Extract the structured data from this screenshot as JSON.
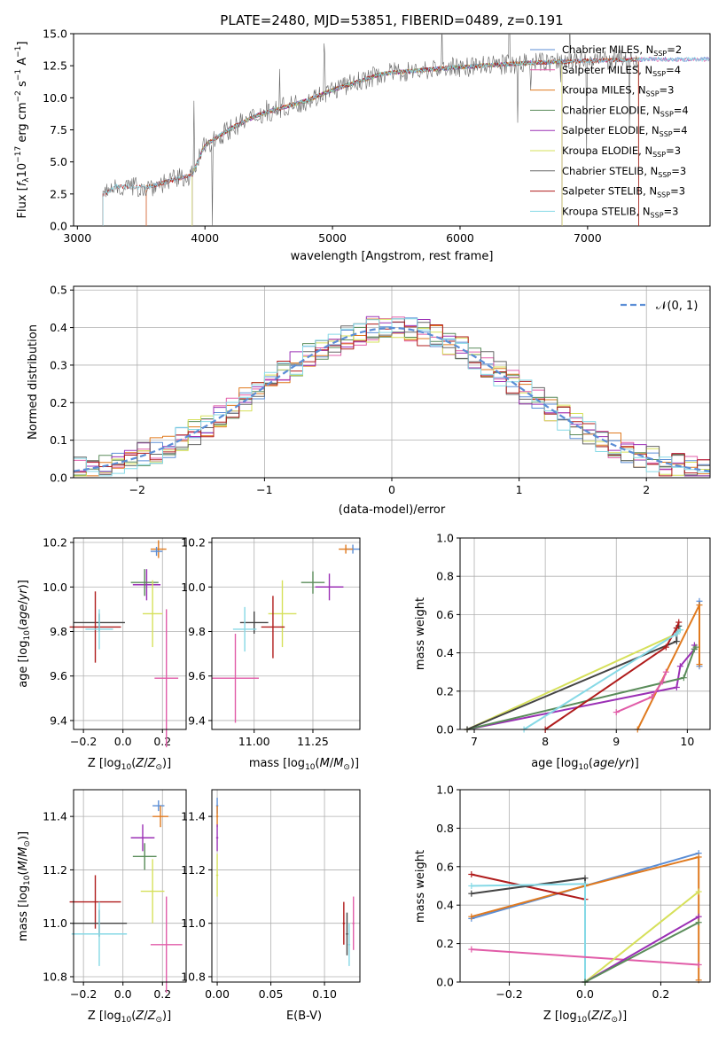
{
  "chart_data": [
    {
      "type": "line",
      "title": "PLATE=2480, MJD=53851, FIBERID=0489, z=0.191",
      "xlabel": "wavelength [Angstrom, rest frame]",
      "ylabel": "Flux [f_λ 10^-17 erg cm^-2 s^-1 A^-1]",
      "xlim": [
        2970,
        7960
      ],
      "ylim": [
        0,
        15
      ],
      "xticks": [
        "3000",
        "4000",
        "5000",
        "6000",
        "7000"
      ],
      "yticks": [
        "0.0",
        "2.5",
        "5.0",
        "7.5",
        "10.0",
        "12.5",
        "15.0"
      ],
      "legend_position": "top-right",
      "series": [
        {
          "name": "Chabrier MILES, N_SSP=2",
          "color": "#5b8ed6",
          "xrange": [
            3540,
            7960
          ]
        },
        {
          "name": "Salpeter MILES, N_SSP=4",
          "color": "#e15ca8",
          "xrange": [
            3540,
            7960
          ]
        },
        {
          "name": "Kroupa MILES, N_SSP=3",
          "color": "#e07a1f",
          "xrange": [
            3540,
            7400
          ]
        },
        {
          "name": "Chabrier ELODIE, N_SSP=4",
          "color": "#5a8c5a",
          "xrange": [
            3900,
            6800
          ]
        },
        {
          "name": "Salpeter ELODIE, N_SSP=4",
          "color": "#9b30b5",
          "xrange": [
            3900,
            6800
          ]
        },
        {
          "name": "Kroupa ELODIE, N_SSP=3",
          "color": "#d6e05a",
          "xrange": [
            3900,
            6800
          ]
        },
        {
          "name": "Chabrier STELIB, N_SSP=3",
          "color": "#666666",
          "xrange": [
            3200,
            7400
          ]
        },
        {
          "name": "Salpeter STELIB, N_SSP=3",
          "color": "#b01c1c",
          "xrange": [
            3200,
            7400
          ]
        },
        {
          "name": "Kroupa STELIB, N_SSP=3",
          "color": "#86d9e6",
          "xrange": [
            3200,
            7960
          ]
        }
      ],
      "continuum": {
        "x": [
          3200,
          3300,
          3540,
          3900,
          4000,
          4200,
          4400,
          4800,
          5000,
          5400,
          6000,
          6500,
          7000,
          7500,
          7960
        ],
        "y": [
          2.4,
          3.1,
          3.0,
          4.0,
          6.3,
          7.6,
          8.6,
          9.8,
          10.6,
          11.9,
          12.4,
          12.7,
          12.9,
          13.0,
          13.0
        ]
      }
    },
    {
      "type": "histogram",
      "xlabel": "(data-model)/error",
      "ylabel": "Normed distribution",
      "xlim": [
        -2.5,
        2.5
      ],
      "ylim": [
        0,
        0.51
      ],
      "xticks": [
        "−2",
        "−1",
        "0",
        "1",
        "2"
      ],
      "yticks": [
        "0.0",
        "0.1",
        "0.2",
        "0.3",
        "0.4",
        "0.5"
      ],
      "legend": {
        "label": "𝒩(0, 1)",
        "color": "#5b8ed6",
        "position": "top-right"
      },
      "bin_width": 0.1
    },
    {
      "type": "scatter",
      "xlabel": "Z [log10(Z/Z☉)]",
      "ylabel": "age  [log10(age/yr)]",
      "xlim": [
        -0.25,
        0.32
      ],
      "ylim": [
        9.36,
        10.22
      ],
      "xticks": [
        "−0.2",
        "0.0",
        "0.2"
      ],
      "yticks": [
        "9.4",
        "9.6",
        "9.8",
        "10.0",
        "10.2"
      ],
      "points": [
        {
          "x": 0.18,
          "y": 10.17,
          "xe": 0.04,
          "ye": 0.04,
          "c": "#e07a1f"
        },
        {
          "x": 0.12,
          "y": 10.01,
          "xe": 0.07,
          "ye": 0.07,
          "c": "#9b30b5"
        },
        {
          "x": 0.11,
          "y": 10.02,
          "xe": 0.07,
          "ye": 0.06,
          "c": "#5a8c5a"
        },
        {
          "x": 0.15,
          "y": 9.88,
          "xe": 0.05,
          "ye": 0.15,
          "c": "#d6e05a"
        },
        {
          "x": -0.12,
          "y": 9.84,
          "xe": 0.13,
          "ye": 0.04,
          "c": "#444444"
        },
        {
          "x": -0.14,
          "y": 9.82,
          "xe": 0.13,
          "ye": 0.16,
          "c": "#b01c1c"
        },
        {
          "x": -0.12,
          "y": 9.81,
          "xe": 0.07,
          "ye": 0.09,
          "c": "#86d9e6"
        },
        {
          "x": 0.22,
          "y": 9.59,
          "xe": 0.06,
          "ye": 0.31,
          "c": "#e15ca8"
        },
        {
          "x": 0.17,
          "y": 10.16,
          "xe": 0.03,
          "ye": 0.02,
          "c": "#5b8ed6"
        }
      ]
    },
    {
      "type": "scatter",
      "xlabel": "mass [log10(M/M☉)]",
      "ylabel": "",
      "xlim": [
        10.82,
        11.45
      ],
      "ylim": [
        9.36,
        10.22
      ],
      "xticks": [
        "11.00",
        "11.25"
      ],
      "yticks": [
        "9.4",
        "9.6",
        "9.8",
        "10.0",
        "10.2"
      ],
      "points": [
        {
          "x": 11.42,
          "y": 10.17,
          "xe": 0.03,
          "ye": 0.02,
          "c": "#5b8ed6"
        },
        {
          "x": 11.39,
          "y": 10.17,
          "xe": 0.03,
          "ye": 0.02,
          "c": "#e07a1f"
        },
        {
          "x": 11.32,
          "y": 10.0,
          "xe": 0.06,
          "ye": 0.06,
          "c": "#9b30b5"
        },
        {
          "x": 11.25,
          "y": 10.02,
          "xe": 0.05,
          "ye": 0.05,
          "c": "#5a8c5a"
        },
        {
          "x": 11.12,
          "y": 9.88,
          "xe": 0.06,
          "ye": 0.15,
          "c": "#d6e05a"
        },
        {
          "x": 11.0,
          "y": 9.84,
          "xe": 0.06,
          "ye": 0.05,
          "c": "#444444"
        },
        {
          "x": 11.08,
          "y": 9.82,
          "xe": 0.05,
          "ye": 0.14,
          "c": "#b01c1c"
        },
        {
          "x": 10.96,
          "y": 9.81,
          "xe": 0.05,
          "ye": 0.1,
          "c": "#86d9e6"
        },
        {
          "x": 10.92,
          "y": 9.59,
          "xe": 0.1,
          "ye": 0.2,
          "c": "#e15ca8"
        }
      ]
    },
    {
      "type": "line",
      "xlabel": "age  [log10(age/yr)]",
      "ylabel": "mass weight",
      "xlim": [
        6.8,
        10.32
      ],
      "ylim": [
        0,
        1
      ],
      "xticks": [
        "7",
        "8",
        "9",
        "10"
      ],
      "yticks": [
        "0.0",
        "0.2",
        "0.4",
        "0.6",
        "0.8",
        "1.0"
      ],
      "series": [
        {
          "c": "#5b8ed6",
          "x": [
            10.17,
            10.17
          ],
          "y": [
            0.67,
            0.33
          ]
        },
        {
          "c": "#e07a1f",
          "x": [
            9.3,
            10.17,
            10.17
          ],
          "y": [
            0.0,
            0.65,
            0.34
          ]
        },
        {
          "c": "#9b30b5",
          "x": [
            6.9,
            9.85,
            9.9,
            10.1,
            10.1
          ],
          "y": [
            0.0,
            0.22,
            0.33,
            0.42,
            0.44
          ]
        },
        {
          "c": "#5a8c5a",
          "x": [
            6.9,
            9.95,
            10.1,
            10.12
          ],
          "y": [
            0.0,
            0.27,
            0.42,
            0.43
          ]
        },
        {
          "c": "#d6e05a",
          "x": [
            6.9,
            9.85,
            9.9
          ],
          "y": [
            0.0,
            0.5,
            0.52
          ]
        },
        {
          "c": "#444444",
          "x": [
            6.9,
            9.85,
            9.85,
            9.88
          ],
          "y": [
            0.0,
            0.46,
            0.53,
            0.54
          ]
        },
        {
          "c": "#b01c1c",
          "x": [
            8.0,
            9.7,
            9.85,
            9.88
          ],
          "y": [
            0.0,
            0.43,
            0.53,
            0.56
          ]
        },
        {
          "c": "#86d9e6",
          "x": [
            7.7,
            9.85,
            9.9
          ],
          "y": [
            0.0,
            0.5,
            0.52
          ]
        },
        {
          "c": "#e15ca8",
          "x": [
            9.0,
            9.5,
            9.65,
            9.7
          ],
          "y": [
            0.09,
            0.17,
            0.25,
            0.3
          ]
        }
      ]
    },
    {
      "type": "scatter",
      "xlabel": "Z [log10(Z/Z☉)]",
      "ylabel": "mass [log10(M/M☉)]",
      "xlim": [
        -0.25,
        0.32
      ],
      "ylim": [
        10.78,
        11.5
      ],
      "xticks": [
        "−0.2",
        "0.0",
        "0.2"
      ],
      "yticks": [
        "10.8",
        "11.0",
        "11.2",
        "11.4"
      ],
      "points": [
        {
          "x": 0.18,
          "y": 11.44,
          "xe": 0.03,
          "ye": 0.02,
          "c": "#5b8ed6"
        },
        {
          "x": 0.19,
          "y": 11.4,
          "xe": 0.04,
          "ye": 0.04,
          "c": "#e07a1f"
        },
        {
          "x": 0.1,
          "y": 11.32,
          "xe": 0.06,
          "ye": 0.05,
          "c": "#9b30b5"
        },
        {
          "x": 0.11,
          "y": 11.25,
          "xe": 0.06,
          "ye": 0.05,
          "c": "#5a8c5a"
        },
        {
          "x": 0.15,
          "y": 11.12,
          "xe": 0.06,
          "ye": 0.12,
          "c": "#d6e05a"
        },
        {
          "x": -0.14,
          "y": 11.08,
          "xe": 0.13,
          "ye": 0.1,
          "c": "#b01c1c"
        },
        {
          "x": -0.12,
          "y": 11.0,
          "xe": 0.14,
          "ye": 0.05,
          "c": "#444444"
        },
        {
          "x": -0.12,
          "y": 10.96,
          "xe": 0.14,
          "ye": 0.12,
          "c": "#86d9e6"
        },
        {
          "x": 0.22,
          "y": 10.92,
          "xe": 0.08,
          "ye": 0.18,
          "c": "#e15ca8"
        }
      ]
    },
    {
      "type": "scatter",
      "xlabel": "E(B-V)",
      "ylabel": "",
      "xlim": [
        -0.005,
        0.133
      ],
      "ylim": [
        10.78,
        11.5
      ],
      "xticks": [
        "0.00",
        "0.05",
        "0.10"
      ],
      "yticks": [
        "10.8",
        "11.0",
        "11.2",
        "11.4"
      ],
      "points": [
        {
          "x": 0.0,
          "y": 11.44,
          "xe": 0.001,
          "ye": 0.03,
          "c": "#5b8ed6"
        },
        {
          "x": 0.0,
          "y": 11.4,
          "xe": 0.001,
          "ye": 0.04,
          "c": "#e07a1f"
        },
        {
          "x": 0.0,
          "y": 11.32,
          "xe": 0.001,
          "ye": 0.05,
          "c": "#9b30b5"
        },
        {
          "x": 0.0,
          "y": 11.18,
          "xe": 0.001,
          "ye": 0.08,
          "c": "#d6e05a"
        },
        {
          "x": 0.118,
          "y": 11.0,
          "xe": 0.001,
          "ye": 0.08,
          "c": "#b01c1c"
        },
        {
          "x": 0.121,
          "y": 10.96,
          "xe": 0.001,
          "ye": 0.08,
          "c": "#444444"
        },
        {
          "x": 0.123,
          "y": 10.92,
          "xe": 0.001,
          "ye": 0.08,
          "c": "#86d9e6"
        },
        {
          "x": 0.127,
          "y": 11.0,
          "xe": 0.001,
          "ye": 0.1,
          "c": "#e15ca8"
        }
      ]
    },
    {
      "type": "line",
      "xlabel": "Z [log10(Z/Z☉)]",
      "ylabel": "mass weight",
      "xlim": [
        -0.33,
        0.33
      ],
      "ylim": [
        0,
        1
      ],
      "xticks": [
        "−0.2",
        "0.0",
        "0.2"
      ],
      "yticks": [
        "0.0",
        "0.2",
        "0.4",
        "0.6",
        "0.8",
        "1.0"
      ],
      "series": [
        {
          "c": "#5b8ed6",
          "x": [
            -0.3,
            0.0,
            0.3
          ],
          "y": [
            0.33,
            0.5,
            0.67
          ]
        },
        {
          "c": "#e07a1f",
          "x": [
            -0.3,
            0.0,
            0.3,
            0.3
          ],
          "y": [
            0.34,
            0.5,
            0.65,
            0.01
          ]
        },
        {
          "c": "#b01c1c",
          "x": [
            -0.3,
            0.0
          ],
          "y": [
            0.56,
            0.43
          ]
        },
        {
          "c": "#444444",
          "x": [
            -0.3,
            0.0,
            0.0
          ],
          "y": [
            0.46,
            0.54,
            0.0
          ]
        },
        {
          "c": "#86d9e6",
          "x": [
            -0.3,
            0.0,
            0.0
          ],
          "y": [
            0.5,
            0.51,
            0.0
          ]
        },
        {
          "c": "#e15ca8",
          "x": [
            -0.3,
            0.3
          ],
          "y": [
            0.17,
            0.09
          ]
        },
        {
          "c": "#d6e05a",
          "x": [
            0.0,
            0.3
          ],
          "y": [
            0.0,
            0.47
          ]
        },
        {
          "c": "#9b30b5",
          "x": [
            0.0,
            0.3
          ],
          "y": [
            0.0,
            0.34
          ]
        },
        {
          "c": "#5a8c5a",
          "x": [
            0.0,
            0.3
          ],
          "y": [
            0.0,
            0.31
          ]
        }
      ]
    }
  ]
}
